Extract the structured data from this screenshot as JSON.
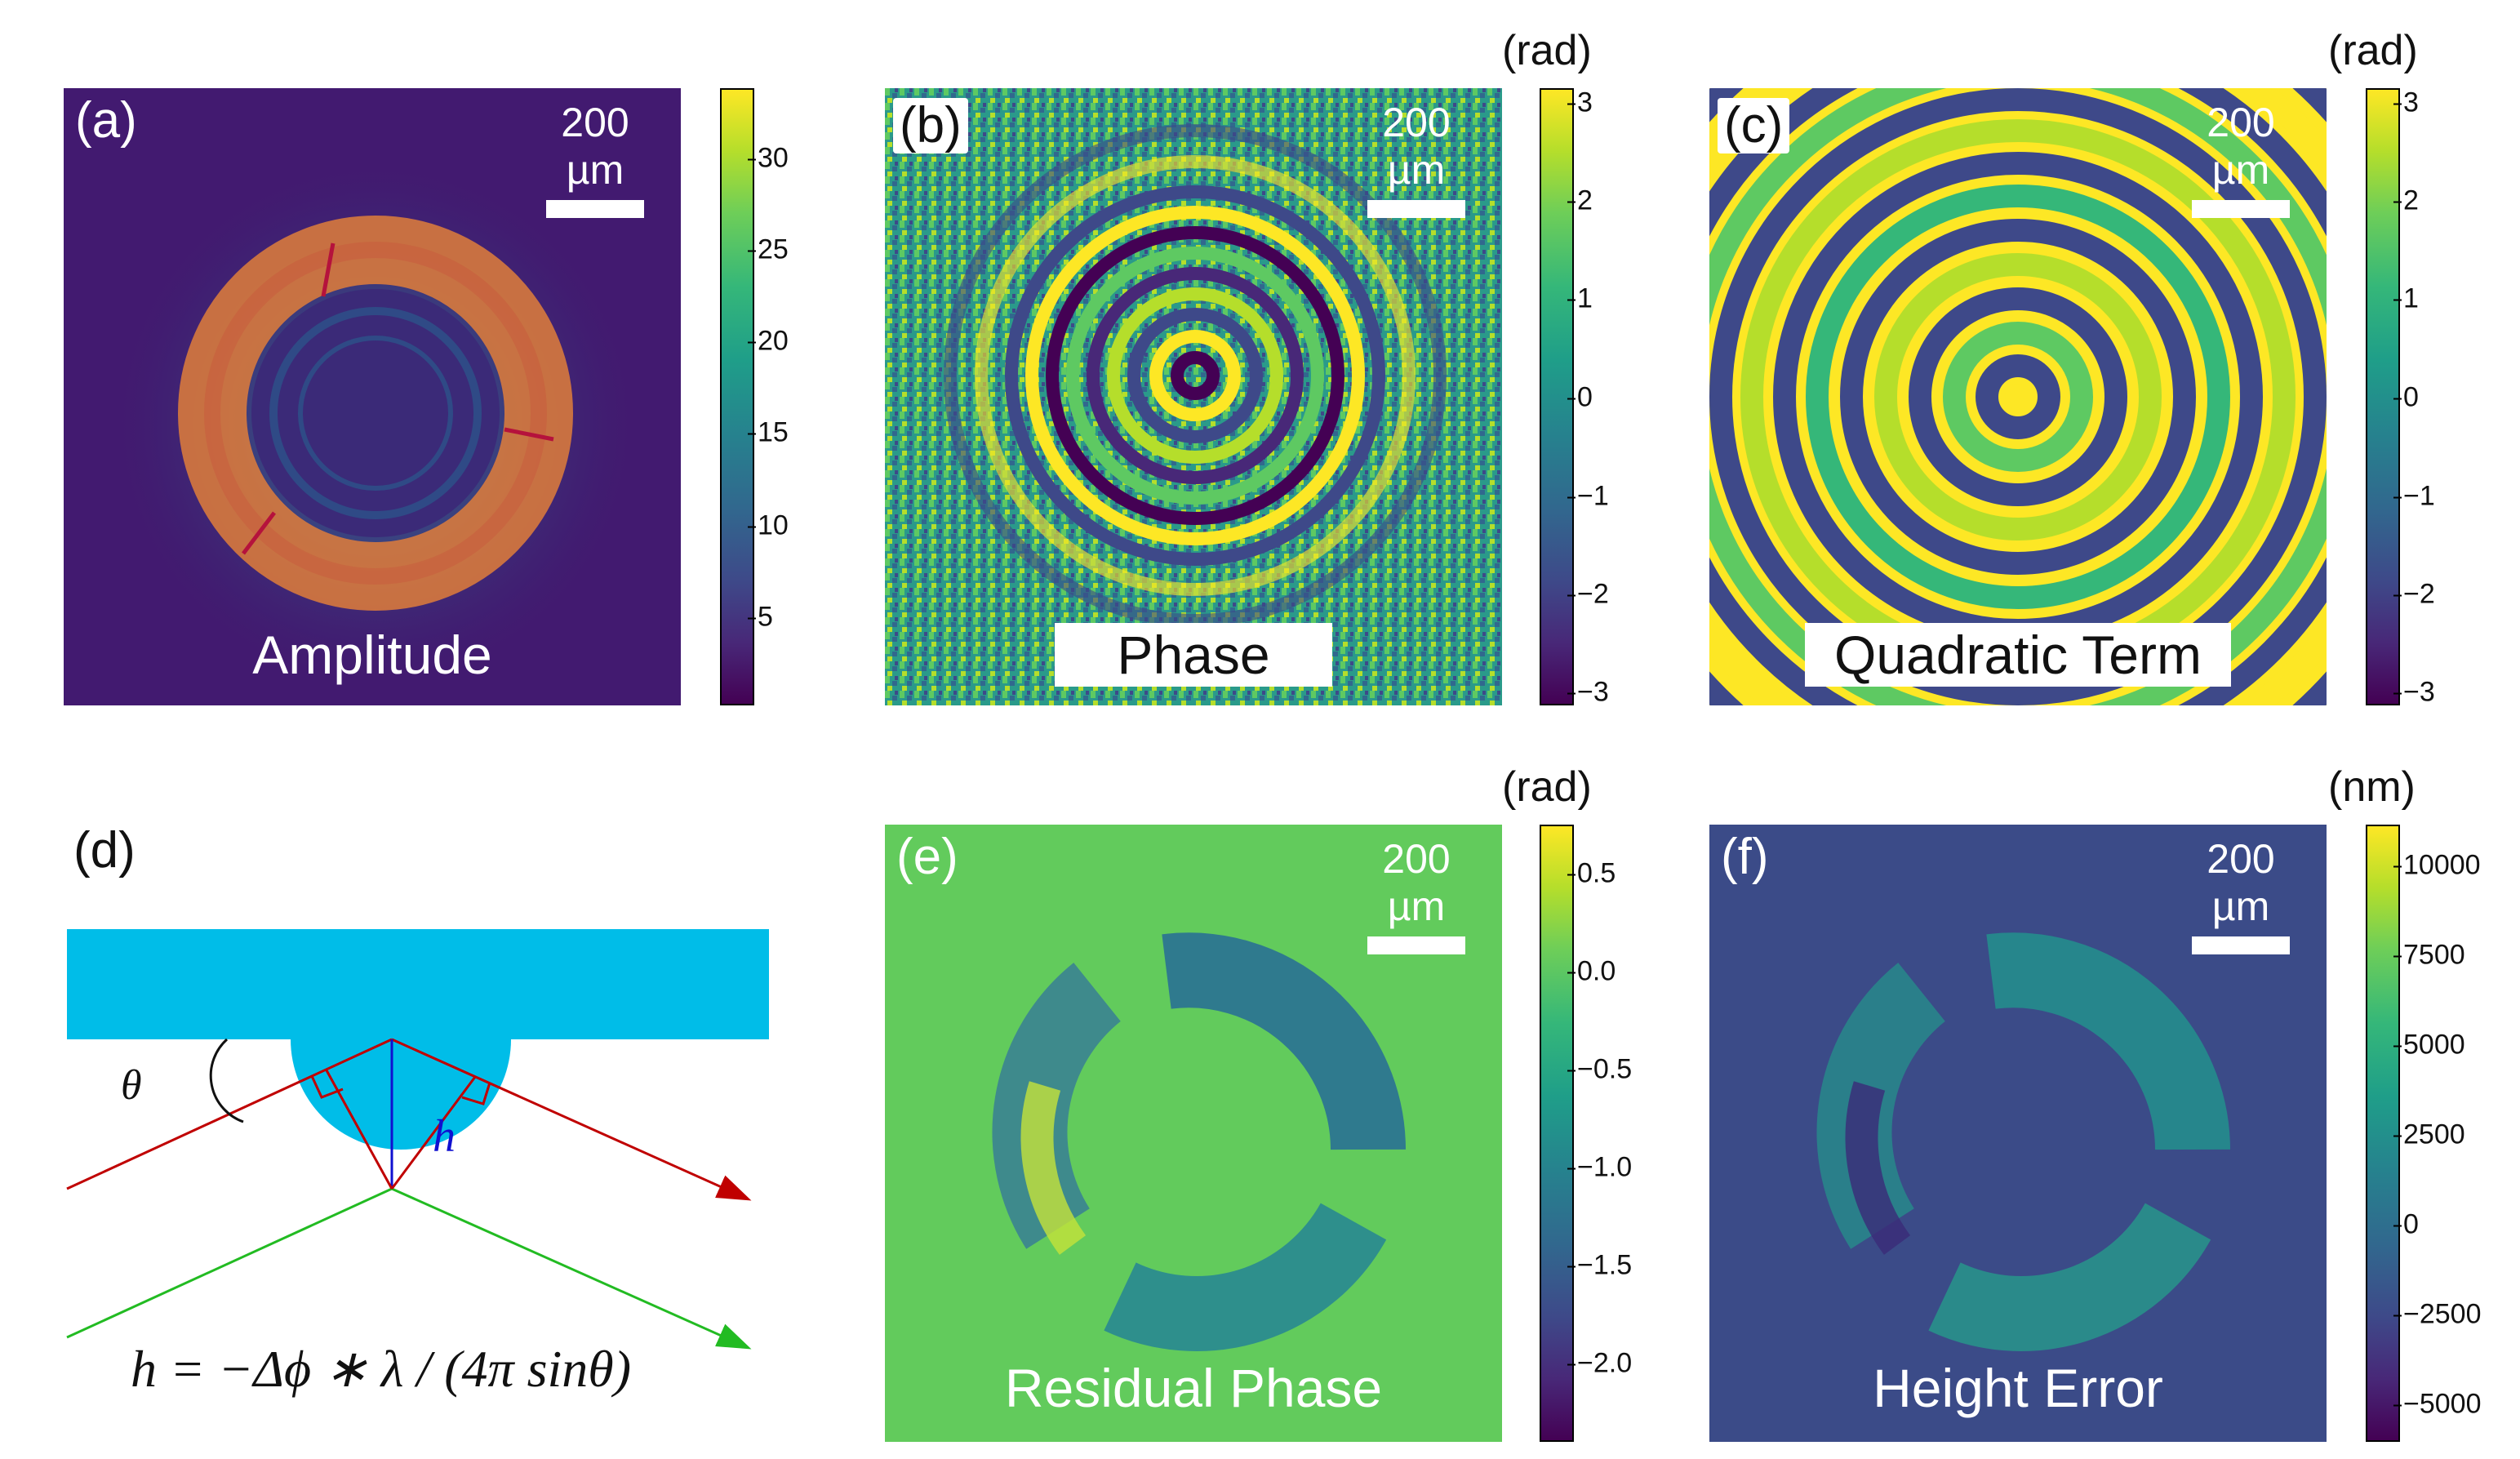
{
  "colors": {
    "viridis_dark": "#440154",
    "viridis_teal": "#21908d",
    "viridis_yellow": "#fde725",
    "substrate": "#00bde8",
    "ray_red": "#c00000",
    "ray_green": "#22bb22",
    "ray_blue": "#1010d0"
  },
  "panels": {
    "a": {
      "label": "(a)",
      "scale": "200 µm",
      "caption": "Amplitude",
      "ticks": [
        "30",
        "25",
        "20",
        "15",
        "10",
        "5"
      ]
    },
    "b": {
      "label": "(b)",
      "scale": "200 µm",
      "caption": "Phase",
      "unit": "(rad)",
      "ticks": [
        "3",
        "2",
        "1",
        "0",
        "−1",
        "−2",
        "−3"
      ]
    },
    "c": {
      "label": "(c)",
      "scale": "200 µm",
      "caption": "Quadratic Term",
      "unit": "(rad)",
      "ticks": [
        "3",
        "2",
        "1",
        "0",
        "−1",
        "−2",
        "−3"
      ]
    },
    "d": {
      "label": "(d)",
      "theta": "θ",
      "h": "h",
      "formula": "h = −Δϕ ∗ λ / (4π sinθ)"
    },
    "e": {
      "label": "(e)",
      "scale": "200 µm",
      "caption": "Residual Phase",
      "unit": "(rad)",
      "ticks": [
        "0.5",
        "0.0",
        "−0.5",
        "−1.0",
        "−1.5",
        "−2.0"
      ]
    },
    "f": {
      "label": "(f)",
      "scale": "200 µm",
      "caption": "Height Error",
      "unit": "(nm)",
      "ticks": [
        "10000",
        "7500",
        "5000",
        "2500",
        "0",
        "−2500",
        "−5000"
      ]
    }
  }
}
